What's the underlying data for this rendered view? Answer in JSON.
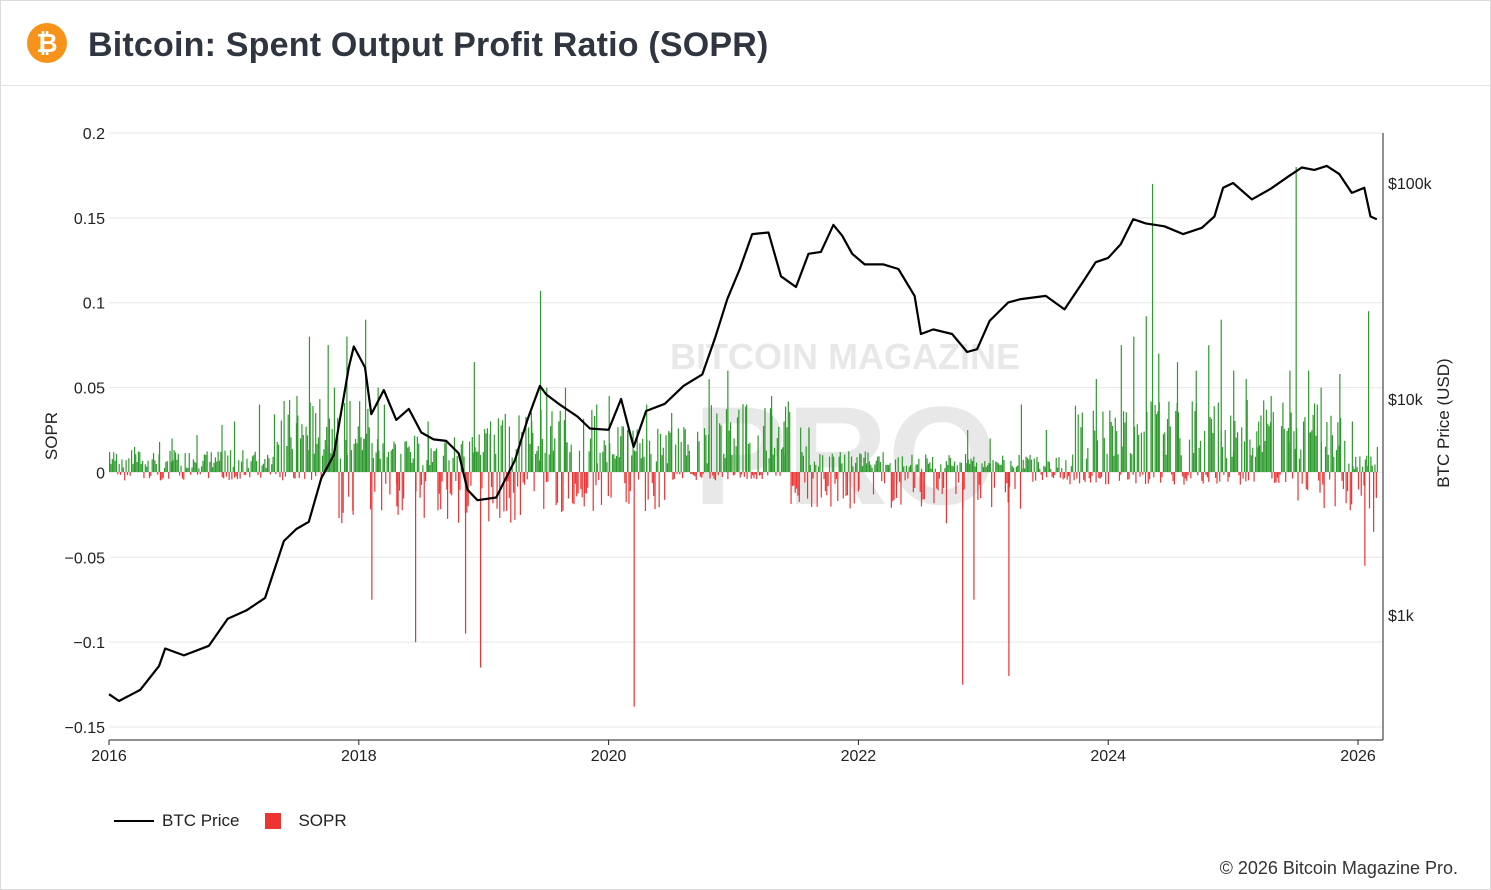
{
  "header": {
    "title": "Bitcoin: Spent Output Profit Ratio (SOPR)",
    "logo_glyph": "₿",
    "logo_color": "#f7931a"
  },
  "watermark": {
    "line1": "BITCOIN MAGAZINE",
    "line2": "PRO"
  },
  "legend": {
    "price_label": "BTC Price",
    "sopr_label": "SOPR"
  },
  "footer": {
    "copyright": "© 2026 Bitcoin Magazine Pro."
  },
  "colors": {
    "positive": "#2e9a2e",
    "negative": "#ee3333",
    "price": "#000000",
    "grid": "#e8e8e8"
  },
  "chart_data": {
    "type": "bar+line",
    "title": "Bitcoin: Spent Output Profit Ratio (SOPR)",
    "xlabel": "",
    "ylabel_left": "SOPR",
    "ylabel_right": "BTC Price (USD)",
    "xlim": [
      2016.0,
      2026.2
    ],
    "ylim_left": [
      -0.15,
      0.2
    ],
    "ylim_right_log": [
      270,
      150000
    ],
    "x_ticks": [
      "2016",
      "2018",
      "2020",
      "2022",
      "2024",
      "2026"
    ],
    "x_tick_values": [
      2016,
      2018,
      2020,
      2022,
      2024,
      2026
    ],
    "y_left_ticks": [
      "0.2",
      "0.15",
      "0.1",
      "0.05",
      "0",
      "−0.05",
      "−0.1",
      "−0.15"
    ],
    "y_left_tick_values": [
      0.2,
      0.15,
      0.1,
      0.05,
      0,
      -0.05,
      -0.1,
      -0.15
    ],
    "y_right_ticks": [
      "$100k",
      "$10k",
      "$1k"
    ],
    "y_right_tick_values": [
      100000,
      10000,
      1000
    ],
    "series": [
      {
        "name": "BTC Price",
        "type": "line",
        "x": [
          2016.0,
          2016.08,
          2016.25,
          2016.4,
          2016.45,
          2016.6,
          2016.8,
          2016.95,
          2017.1,
          2017.25,
          2017.4,
          2017.5,
          2017.6,
          2017.7,
          2017.8,
          2017.92,
          2017.96,
          2018.05,
          2018.1,
          2018.2,
          2018.3,
          2018.4,
          2018.5,
          2018.6,
          2018.7,
          2018.8,
          2018.87,
          2018.95,
          2019.1,
          2019.25,
          2019.35,
          2019.45,
          2019.5,
          2019.6,
          2019.75,
          2019.85,
          2020.0,
          2020.1,
          2020.2,
          2020.3,
          2020.45,
          2020.6,
          2020.75,
          2020.85,
          2020.95,
          2021.05,
          2021.15,
          2021.28,
          2021.38,
          2021.5,
          2021.6,
          2021.7,
          2021.8,
          2021.87,
          2021.95,
          2022.05,
          2022.2,
          2022.32,
          2022.45,
          2022.5,
          2022.6,
          2022.75,
          2022.87,
          2022.95,
          2023.05,
          2023.2,
          2023.3,
          2023.5,
          2023.65,
          2023.8,
          2023.9,
          2024.0,
          2024.1,
          2024.2,
          2024.3,
          2024.45,
          2024.6,
          2024.75,
          2024.85,
          2024.92,
          2025.0,
          2025.15,
          2025.3,
          2025.45,
          2025.55,
          2025.65,
          2025.75,
          2025.85,
          2025.95,
          2026.05,
          2026.1,
          2026.15
        ],
        "values": [
          430,
          400,
          450,
          580,
          700,
          650,
          720,
          960,
          1050,
          1200,
          2200,
          2500,
          2700,
          4300,
          5500,
          14000,
          17500,
          14000,
          8500,
          11000,
          8000,
          9000,
          7000,
          6500,
          6400,
          5600,
          3800,
          3400,
          3500,
          5200,
          8000,
          11500,
          10500,
          9500,
          8300,
          7300,
          7200,
          10000,
          6000,
          8800,
          9500,
          11500,
          13000,
          19000,
          29000,
          40000,
          58000,
          59000,
          37000,
          33000,
          47000,
          48000,
          64000,
          57000,
          47000,
          42000,
          42000,
          40000,
          30000,
          20000,
          21000,
          20000,
          16500,
          17000,
          23000,
          28000,
          29000,
          30000,
          26000,
          35000,
          43000,
          45000,
          52000,
          68000,
          65000,
          63000,
          58000,
          62000,
          70000,
          95000,
          100000,
          84000,
          94000,
          108000,
          118000,
          115000,
          120000,
          110000,
          90000,
          95000,
          70000,
          68000
        ]
      },
      {
        "name": "SOPR",
        "type": "bar",
        "x": [
          2016.0,
          2016.2,
          2016.4,
          2016.5,
          2016.7,
          2016.9,
          2017.0,
          2017.2,
          2017.5,
          2017.6,
          2017.65,
          2017.75,
          2017.8,
          2017.9,
          2017.95,
          2018.05,
          2018.1,
          2018.15,
          2018.2,
          2018.3,
          2018.45,
          2018.55,
          2018.7,
          2018.85,
          2018.92,
          2018.97,
          2019.05,
          2019.2,
          2019.38,
          2019.45,
          2019.5,
          2019.65,
          2019.8,
          2019.9,
          2020.0,
          2020.15,
          2020.2,
          2020.3,
          2020.5,
          2020.8,
          2020.95,
          2021.0,
          2021.1,
          2021.3,
          2021.4,
          2021.6,
          2021.85,
          2022.0,
          2022.3,
          2022.5,
          2022.7,
          2022.83,
          2022.87,
          2022.92,
          2023.05,
          2023.2,
          2023.3,
          2023.5,
          2023.9,
          2024.1,
          2024.2,
          2024.3,
          2024.35,
          2024.4,
          2024.55,
          2024.7,
          2024.8,
          2024.9,
          2025.0,
          2025.1,
          2025.2,
          2025.3,
          2025.45,
          2025.5,
          2025.6,
          2025.7,
          2025.85,
          2025.95,
          2026.05,
          2026.08,
          2026.12,
          2026.15
        ],
        "values": [
          0.012,
          0.015,
          0.018,
          0.02,
          0.022,
          0.028,
          0.03,
          0.04,
          0.045,
          0.08,
          0.035,
          0.075,
          0.05,
          0.08,
          -0.025,
          0.09,
          -0.075,
          0.05,
          0.04,
          -0.02,
          -0.1,
          0.03,
          -0.01,
          -0.095,
          0.065,
          -0.115,
          0.03,
          -0.015,
          0.03,
          0.107,
          0.05,
          0.05,
          -0.02,
          0.04,
          0.045,
          0.025,
          -0.138,
          0.04,
          0.035,
          0.055,
          0.06,
          0.02,
          0.04,
          0.045,
          0.03,
          0.025,
          0.012,
          -0.01,
          -0.015,
          -0.02,
          -0.03,
          -0.125,
          0.025,
          -0.075,
          0.02,
          -0.12,
          0.04,
          0.025,
          0.055,
          0.075,
          0.08,
          0.092,
          0.17,
          0.07,
          0.065,
          0.06,
          0.075,
          0.09,
          0.06,
          0.055,
          0.03,
          0.045,
          0.06,
          0.18,
          0.06,
          0.05,
          0.058,
          0.03,
          -0.055,
          0.095,
          -0.035,
          0.015
        ]
      }
    ]
  }
}
